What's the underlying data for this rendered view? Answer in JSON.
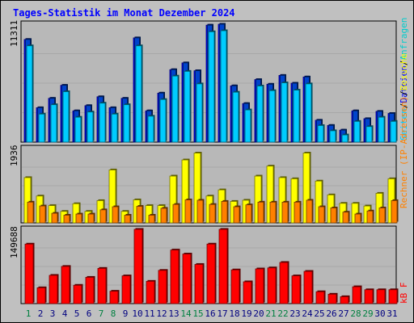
{
  "title": "Tages-Statistik im Monat Dezember 2024",
  "colors": {
    "background": "#c0c0c0",
    "title": "#0000ff",
    "hits": "#00ccff",
    "files": "#0000ff",
    "pages": "#00cccc",
    "visits": "#ffff00",
    "sites": "#ff8000",
    "kbytes": "#ff0000",
    "weekday_label": "#000080",
    "weekend_label": "#008040"
  },
  "chart_data": [
    {
      "type": "bar",
      "panel": "requests",
      "ymax_label": "11311",
      "ylim": [
        0,
        11311
      ],
      "legend": [
        "Anfragen",
        "/",
        "Dateien",
        "/",
        "Seiten"
      ],
      "categories": [
        "1",
        "2",
        "3",
        "4",
        "5",
        "6",
        "7",
        "8",
        "9",
        "10",
        "11",
        "12",
        "13",
        "14",
        "15",
        "16",
        "17",
        "18",
        "19",
        "20",
        "21",
        "22",
        "23",
        "24",
        "25",
        "26",
        "27",
        "28",
        "29",
        "30",
        "31"
      ],
      "series": [
        {
          "name": "Anfragen",
          "values": [
            9850,
            3300,
            4200,
            5450,
            3000,
            3500,
            4350,
            3300,
            4200,
            10000,
            3000,
            4700,
            6950,
            7600,
            6850,
            11220,
            11310,
            5400,
            3700,
            6000,
            5550,
            6400,
            5650,
            6250,
            2100,
            1600,
            1150,
            3000,
            2250,
            2950,
            2750
          ]
        },
        {
          "name": "Dateien",
          "values": [
            9850,
            3300,
            4200,
            5450,
            3000,
            3500,
            4350,
            3300,
            4200,
            10000,
            3000,
            4700,
            6950,
            7600,
            6850,
            11220,
            11310,
            5400,
            3700,
            6000,
            5550,
            6400,
            5650,
            6250,
            2100,
            1600,
            1150,
            3000,
            2250,
            2950,
            2750
          ]
        },
        {
          "name": "Seiten",
          "values": [
            9550,
            3000,
            3900,
            5150,
            2700,
            3200,
            4050,
            3000,
            3900,
            9550,
            2800,
            4400,
            6650,
            7100,
            5900,
            10900,
            11000,
            5100,
            3400,
            5700,
            5250,
            6000,
            5300,
            5900,
            1900,
            1400,
            1000,
            2300,
            1800,
            2700,
            2300
          ]
        }
      ]
    },
    {
      "type": "bar",
      "panel": "visits",
      "ymax_label": "1936",
      "ylim": [
        0,
        1936
      ],
      "legend": [
        "Rechner (IP-Adressen)",
        "/",
        "Besuche"
      ],
      "categories": [
        "1",
        "2",
        "3",
        "4",
        "5",
        "6",
        "7",
        "8",
        "9",
        "10",
        "11",
        "12",
        "13",
        "14",
        "15",
        "16",
        "17",
        "18",
        "19",
        "20",
        "21",
        "22",
        "23",
        "24",
        "25",
        "26",
        "27",
        "28",
        "29",
        "30",
        "31"
      ],
      "series": [
        {
          "name": "Besuche",
          "values": [
            1180,
            700,
            450,
            300,
            500,
            300,
            580,
            1380,
            300,
            600,
            450,
            450,
            1220,
            1640,
            1820,
            700,
            860,
            560,
            590,
            1220,
            1480,
            1180,
            1150,
            1820,
            1090,
            730,
            510,
            510,
            440,
            770,
            1150
          ]
        },
        {
          "name": "Rechner",
          "values": [
            540,
            440,
            250,
            200,
            230,
            230,
            340,
            420,
            200,
            430,
            200,
            380,
            480,
            600,
            590,
            480,
            560,
            420,
            470,
            540,
            540,
            540,
            540,
            590,
            420,
            390,
            280,
            230,
            310,
            390,
            580
          ]
        }
      ]
    },
    {
      "type": "bar",
      "panel": "kbytes",
      "ymax_label": "149688",
      "ylim": [
        0,
        149688
      ],
      "legend": [
        "kB F"
      ],
      "categories": [
        "1",
        "2",
        "3",
        "4",
        "5",
        "6",
        "7",
        "8",
        "9",
        "10",
        "11",
        "12",
        "13",
        "14",
        "15",
        "16",
        "17",
        "18",
        "19",
        "20",
        "21",
        "22",
        "23",
        "24",
        "25",
        "26",
        "27",
        "28",
        "29",
        "30",
        "31"
      ],
      "series": [
        {
          "name": "kB F",
          "values": [
            120000,
            32000,
            57000,
            75000,
            37000,
            53000,
            71000,
            25000,
            56000,
            149688,
            45000,
            67000,
            108000,
            100000,
            79000,
            120000,
            149688,
            68000,
            44000,
            70000,
            72000,
            83000,
            56000,
            65000,
            24000,
            19000,
            14000,
            34000,
            28000,
            28000,
            28000
          ]
        }
      ]
    }
  ],
  "days": [
    "1",
    "2",
    "3",
    "4",
    "5",
    "6",
    "7",
    "8",
    "9",
    "10",
    "11",
    "12",
    "13",
    "14",
    "15",
    "16",
    "17",
    "18",
    "19",
    "20",
    "21",
    "22",
    "23",
    "24",
    "25",
    "26",
    "27",
    "28",
    "29",
    "30",
    "31"
  ],
  "weekend_days": [
    "1",
    "7",
    "8",
    "14",
    "15",
    "21",
    "22",
    "28",
    "29"
  ]
}
